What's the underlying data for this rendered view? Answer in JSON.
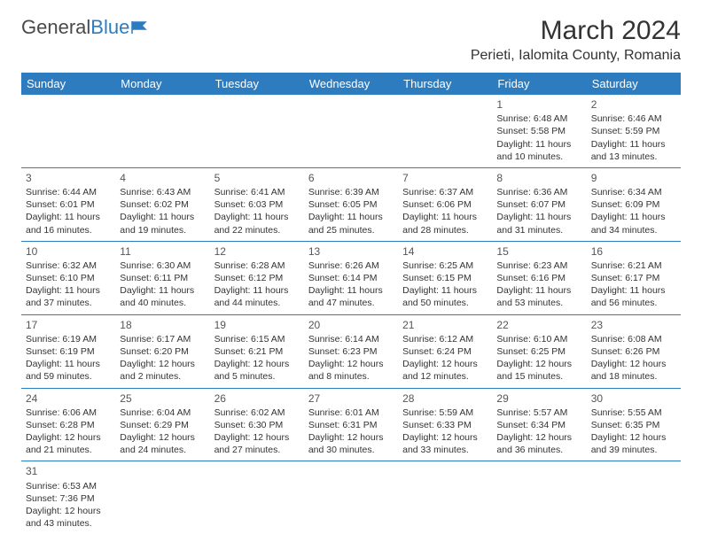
{
  "logo": {
    "text1": "General",
    "text2": "Blue"
  },
  "title": "March 2024",
  "location": "Perieti, Ialomita County, Romania",
  "weekdays": [
    "Sunday",
    "Monday",
    "Tuesday",
    "Wednesday",
    "Thursday",
    "Friday",
    "Saturday"
  ],
  "colors": {
    "header_bg": "#2e7cc0",
    "header_text": "#ffffff",
    "border": "#2e7cc0",
    "text": "#333333",
    "logo_gray": "#4a4a4a",
    "logo_blue": "#2e7cc0",
    "background": "#ffffff"
  },
  "typography": {
    "title_fontsize": 30,
    "location_fontsize": 16,
    "logo_fontsize": 22,
    "weekday_fontsize": 13,
    "daynum_fontsize": 12,
    "cell_fontsize": 10.5
  },
  "weeks": [
    [
      null,
      null,
      null,
      null,
      null,
      {
        "n": "1",
        "sr": "Sunrise: 6:48 AM",
        "ss": "Sunset: 5:58 PM",
        "d1": "Daylight: 11 hours",
        "d2": "and 10 minutes."
      },
      {
        "n": "2",
        "sr": "Sunrise: 6:46 AM",
        "ss": "Sunset: 5:59 PM",
        "d1": "Daylight: 11 hours",
        "d2": "and 13 minutes."
      }
    ],
    [
      {
        "n": "3",
        "sr": "Sunrise: 6:44 AM",
        "ss": "Sunset: 6:01 PM",
        "d1": "Daylight: 11 hours",
        "d2": "and 16 minutes."
      },
      {
        "n": "4",
        "sr": "Sunrise: 6:43 AM",
        "ss": "Sunset: 6:02 PM",
        "d1": "Daylight: 11 hours",
        "d2": "and 19 minutes."
      },
      {
        "n": "5",
        "sr": "Sunrise: 6:41 AM",
        "ss": "Sunset: 6:03 PM",
        "d1": "Daylight: 11 hours",
        "d2": "and 22 minutes."
      },
      {
        "n": "6",
        "sr": "Sunrise: 6:39 AM",
        "ss": "Sunset: 6:05 PM",
        "d1": "Daylight: 11 hours",
        "d2": "and 25 minutes."
      },
      {
        "n": "7",
        "sr": "Sunrise: 6:37 AM",
        "ss": "Sunset: 6:06 PM",
        "d1": "Daylight: 11 hours",
        "d2": "and 28 minutes."
      },
      {
        "n": "8",
        "sr": "Sunrise: 6:36 AM",
        "ss": "Sunset: 6:07 PM",
        "d1": "Daylight: 11 hours",
        "d2": "and 31 minutes."
      },
      {
        "n": "9",
        "sr": "Sunrise: 6:34 AM",
        "ss": "Sunset: 6:09 PM",
        "d1": "Daylight: 11 hours",
        "d2": "and 34 minutes."
      }
    ],
    [
      {
        "n": "10",
        "sr": "Sunrise: 6:32 AM",
        "ss": "Sunset: 6:10 PM",
        "d1": "Daylight: 11 hours",
        "d2": "and 37 minutes."
      },
      {
        "n": "11",
        "sr": "Sunrise: 6:30 AM",
        "ss": "Sunset: 6:11 PM",
        "d1": "Daylight: 11 hours",
        "d2": "and 40 minutes."
      },
      {
        "n": "12",
        "sr": "Sunrise: 6:28 AM",
        "ss": "Sunset: 6:12 PM",
        "d1": "Daylight: 11 hours",
        "d2": "and 44 minutes."
      },
      {
        "n": "13",
        "sr": "Sunrise: 6:26 AM",
        "ss": "Sunset: 6:14 PM",
        "d1": "Daylight: 11 hours",
        "d2": "and 47 minutes."
      },
      {
        "n": "14",
        "sr": "Sunrise: 6:25 AM",
        "ss": "Sunset: 6:15 PM",
        "d1": "Daylight: 11 hours",
        "d2": "and 50 minutes."
      },
      {
        "n": "15",
        "sr": "Sunrise: 6:23 AM",
        "ss": "Sunset: 6:16 PM",
        "d1": "Daylight: 11 hours",
        "d2": "and 53 minutes."
      },
      {
        "n": "16",
        "sr": "Sunrise: 6:21 AM",
        "ss": "Sunset: 6:17 PM",
        "d1": "Daylight: 11 hours",
        "d2": "and 56 minutes."
      }
    ],
    [
      {
        "n": "17",
        "sr": "Sunrise: 6:19 AM",
        "ss": "Sunset: 6:19 PM",
        "d1": "Daylight: 11 hours",
        "d2": "and 59 minutes."
      },
      {
        "n": "18",
        "sr": "Sunrise: 6:17 AM",
        "ss": "Sunset: 6:20 PM",
        "d1": "Daylight: 12 hours",
        "d2": "and 2 minutes."
      },
      {
        "n": "19",
        "sr": "Sunrise: 6:15 AM",
        "ss": "Sunset: 6:21 PM",
        "d1": "Daylight: 12 hours",
        "d2": "and 5 minutes."
      },
      {
        "n": "20",
        "sr": "Sunrise: 6:14 AM",
        "ss": "Sunset: 6:23 PM",
        "d1": "Daylight: 12 hours",
        "d2": "and 8 minutes."
      },
      {
        "n": "21",
        "sr": "Sunrise: 6:12 AM",
        "ss": "Sunset: 6:24 PM",
        "d1": "Daylight: 12 hours",
        "d2": "and 12 minutes."
      },
      {
        "n": "22",
        "sr": "Sunrise: 6:10 AM",
        "ss": "Sunset: 6:25 PM",
        "d1": "Daylight: 12 hours",
        "d2": "and 15 minutes."
      },
      {
        "n": "23",
        "sr": "Sunrise: 6:08 AM",
        "ss": "Sunset: 6:26 PM",
        "d1": "Daylight: 12 hours",
        "d2": "and 18 minutes."
      }
    ],
    [
      {
        "n": "24",
        "sr": "Sunrise: 6:06 AM",
        "ss": "Sunset: 6:28 PM",
        "d1": "Daylight: 12 hours",
        "d2": "and 21 minutes."
      },
      {
        "n": "25",
        "sr": "Sunrise: 6:04 AM",
        "ss": "Sunset: 6:29 PM",
        "d1": "Daylight: 12 hours",
        "d2": "and 24 minutes."
      },
      {
        "n": "26",
        "sr": "Sunrise: 6:02 AM",
        "ss": "Sunset: 6:30 PM",
        "d1": "Daylight: 12 hours",
        "d2": "and 27 minutes."
      },
      {
        "n": "27",
        "sr": "Sunrise: 6:01 AM",
        "ss": "Sunset: 6:31 PM",
        "d1": "Daylight: 12 hours",
        "d2": "and 30 minutes."
      },
      {
        "n": "28",
        "sr": "Sunrise: 5:59 AM",
        "ss": "Sunset: 6:33 PM",
        "d1": "Daylight: 12 hours",
        "d2": "and 33 minutes."
      },
      {
        "n": "29",
        "sr": "Sunrise: 5:57 AM",
        "ss": "Sunset: 6:34 PM",
        "d1": "Daylight: 12 hours",
        "d2": "and 36 minutes."
      },
      {
        "n": "30",
        "sr": "Sunrise: 5:55 AM",
        "ss": "Sunset: 6:35 PM",
        "d1": "Daylight: 12 hours",
        "d2": "and 39 minutes."
      }
    ],
    [
      {
        "n": "31",
        "sr": "Sunrise: 6:53 AM",
        "ss": "Sunset: 7:36 PM",
        "d1": "Daylight: 12 hours",
        "d2": "and 43 minutes."
      },
      null,
      null,
      null,
      null,
      null,
      null
    ]
  ]
}
